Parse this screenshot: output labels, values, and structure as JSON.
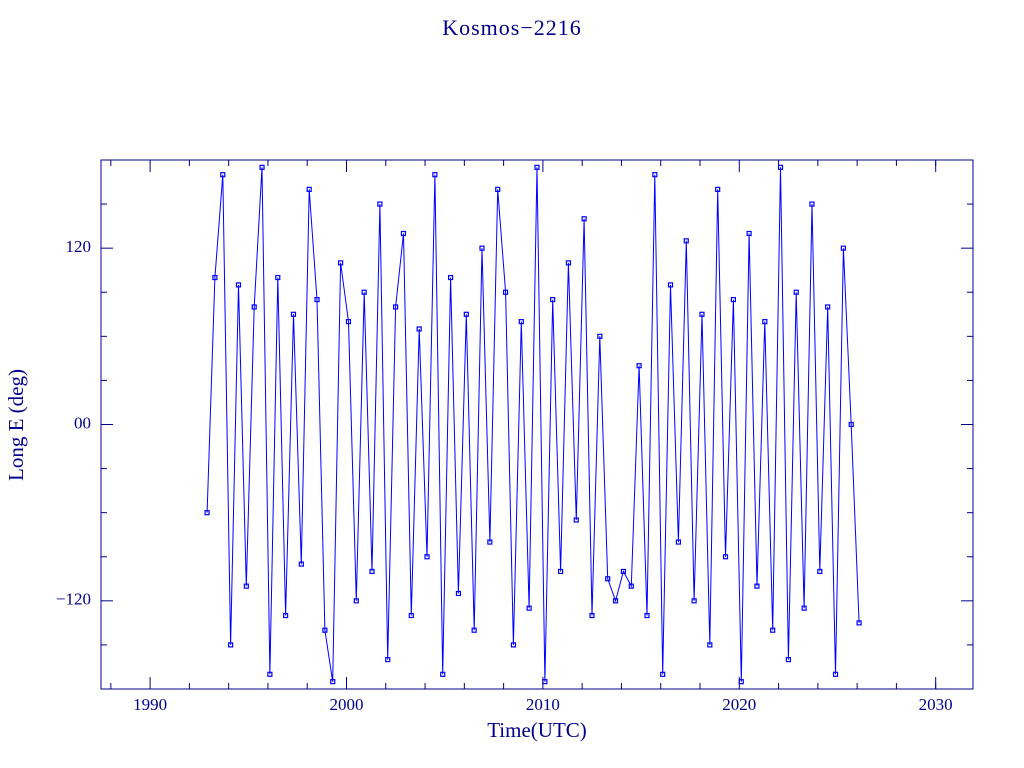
{
  "chart_data": {
    "type": "line",
    "title": "Kosmos−2216",
    "x_label": "Time(UTC)",
    "y_label": "Long E (deg)",
    "xlim": [
      1987.5,
      2031.9
    ],
    "ylim": [
      -180,
      180
    ],
    "xticks": [
      1990,
      2000,
      2010,
      2020,
      2030
    ],
    "xminorticks": [
      1988,
      1992,
      1994,
      1996,
      1998,
      2002,
      2004,
      2006,
      2008,
      2012,
      2014,
      2016,
      2018,
      2022,
      2024,
      2026,
      2028,
      2030
    ],
    "yticks": [
      {
        "value": -120,
        "label": "−120"
      },
      {
        "value": 0,
        "label": "00"
      },
      120
    ],
    "yminorticks": [
      -150,
      -90,
      -60,
      -30,
      30,
      60,
      90,
      150
    ],
    "color": "#0000ff",
    "axis_color": "#00008b",
    "markers": true,
    "x": [
      1992.9,
      1993.3,
      1993.7,
      1994.1,
      1994.5,
      1994.9,
      1995.3,
      1995.7,
      1996.1,
      1996.5,
      1996.9,
      1997.3,
      1997.7,
      1998.1,
      1998.5,
      1998.9,
      1999.3,
      1999.7,
      2000.1,
      2000.5,
      2000.9,
      2001.3,
      2001.7,
      2002.1,
      2002.5,
      2002.9,
      2003.3,
      2003.7,
      2004.1,
      2004.5,
      2004.9,
      2005.3,
      2005.7,
      2006.1,
      2006.5,
      2006.9,
      2007.3,
      2007.7,
      2008.1,
      2008.5,
      2008.9,
      2009.3,
      2009.7,
      2010.1,
      2010.5,
      2010.9,
      2011.3,
      2011.7,
      2012.1,
      2012.5,
      2012.9,
      2013.3,
      2013.7,
      2014.1,
      2014.5,
      2014.9,
      2015.3,
      2015.7,
      2016.1,
      2016.5,
      2016.9,
      2017.3,
      2017.7,
      2018.1,
      2018.5,
      2018.9,
      2019.3,
      2019.7,
      2020.1,
      2020.5,
      2020.9,
      2021.3,
      2021.7,
      2022.1,
      2022.5,
      2022.9,
      2023.3,
      2023.7,
      2024.1,
      2024.5,
      2024.9,
      2025.3,
      2025.7,
      2026.1
    ],
    "values": [
      -60,
      100,
      170,
      -150,
      95,
      -110,
      80,
      175,
      -170,
      100,
      -130,
      75,
      -95,
      160,
      85,
      -140,
      -175,
      110,
      70,
      -120,
      90,
      -100,
      150,
      -160,
      80,
      130,
      -130,
      65,
      -90,
      170,
      -170,
      100,
      -115,
      75,
      -140,
      120,
      -80,
      160,
      90,
      -150,
      70,
      -125,
      175,
      -175,
      85,
      -100,
      110,
      -65,
      140,
      -130,
      60,
      -105,
      -120,
      -100,
      -110,
      40,
      -130,
      170,
      -170,
      95,
      -80,
      125,
      -120,
      75,
      -150,
      160,
      -90,
      85,
      -175,
      130,
      -110,
      70,
      -140,
      175,
      -160,
      90,
      -125,
      150,
      -100,
      80,
      -170,
      120,
      0,
      -135
    ]
  }
}
